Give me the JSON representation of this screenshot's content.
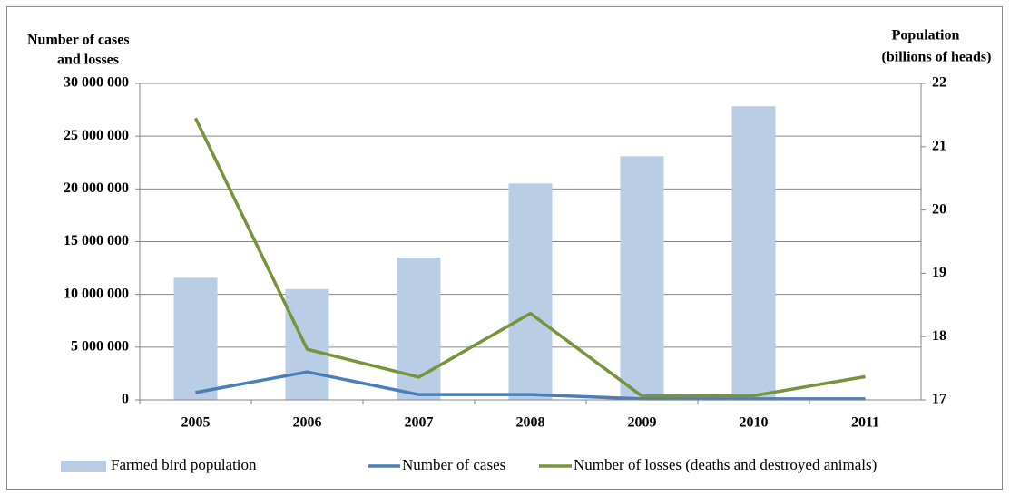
{
  "chart_data": {
    "type": "bar+line",
    "y_label": [
      "Number of  cases",
      "and losses"
    ],
    "y2_label": [
      "Population",
      "(billions of heads)"
    ],
    "categories": [
      "2005",
      "2006",
      "2007",
      "2008",
      "2009",
      "2010",
      "2011"
    ],
    "series": [
      {
        "name": "Farmed bird population",
        "type": "bar",
        "axis": "y2",
        "color": "#b9cde5",
        "values": [
          18.93,
          18.75,
          19.25,
          20.42,
          20.85,
          21.64,
          null
        ]
      },
      {
        "name": "Number of cases",
        "type": "line",
        "color": "#4a7ebb",
        "values": [
          700000,
          2650000,
          500000,
          500000,
          100000,
          100000,
          100000
        ]
      },
      {
        "name": "Number of losses (deaths and destroyed animals)",
        "type": "line",
        "color": "#77933c",
        "values": [
          26700000,
          4800000,
          2150000,
          8200000,
          350000,
          400000,
          2200000
        ]
      }
    ],
    "ylim": [
      0,
      30000000
    ],
    "yticks": [
      0,
      {
        "value": 5000000,
        "label": "5 000 000"
      },
      {
        "value": 10000000,
        "label": "10 000 000"
      },
      {
        "value": 15000000,
        "label": "15 000 000"
      },
      {
        "value": 20000000,
        "label": "20 000 000"
      },
      {
        "value": 25000000,
        "label": "25 000 000"
      },
      {
        "value": 30000000,
        "label": "30 000 000"
      }
    ],
    "y2lim": [
      17,
      22
    ],
    "y2ticks": [
      17,
      18,
      19,
      20,
      21,
      22
    ],
    "grid": true,
    "legend": "bottom"
  }
}
